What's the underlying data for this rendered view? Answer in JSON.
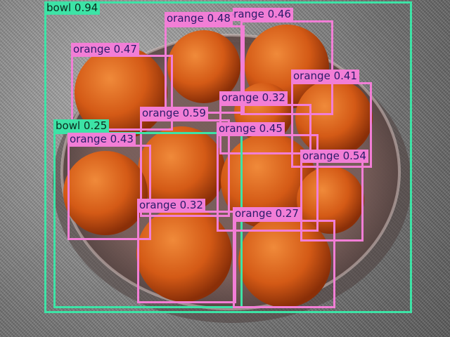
{
  "colors": {
    "bowl": "#3de3a6",
    "orange": "#f27ed6",
    "label_text_bowl": "#0a2a1c",
    "label_text_orange": "#2a1a6a",
    "orange_fruit": "#d9621c",
    "bowl_glass": "#8b6c68"
  },
  "detections": [
    {
      "label": "bowl",
      "score": "0.94"
    },
    {
      "label": "orange",
      "score": "0.48"
    },
    {
      "label": "orange",
      "score": "0.46"
    },
    {
      "label": "orange",
      "score": "0.47"
    },
    {
      "label": "orange",
      "score": "0.41"
    },
    {
      "label": "orange",
      "score": "0.32"
    },
    {
      "label": "orange",
      "score": "0.59"
    },
    {
      "label": "bowl",
      "score": "0.25"
    },
    {
      "label": "orange",
      "score": "0.45"
    },
    {
      "label": "orange",
      "score": "0.43"
    },
    {
      "label": "orange",
      "score": "0.54"
    },
    {
      "label": "orange",
      "score": "0.32"
    },
    {
      "label": "orange",
      "score": "0.27"
    }
  ]
}
